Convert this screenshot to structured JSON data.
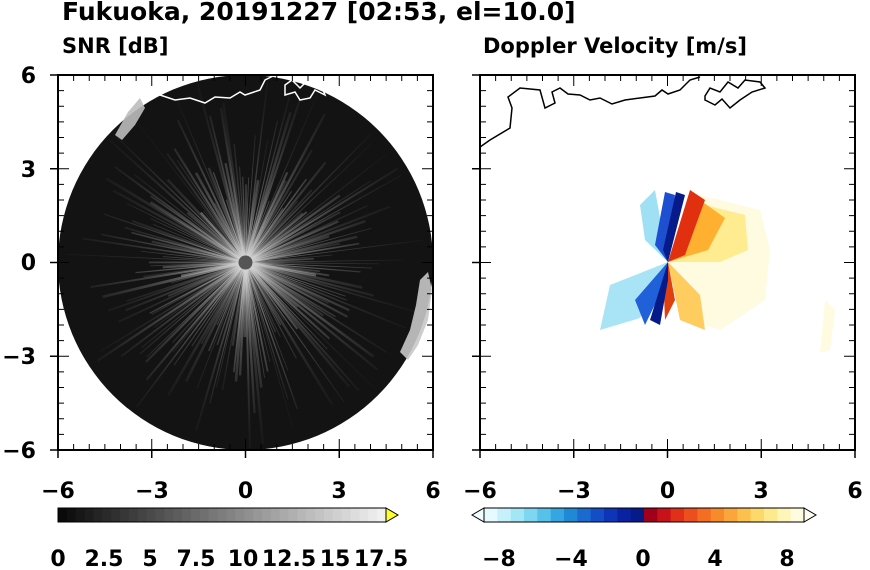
{
  "figure": {
    "title": "Fukuoka, 20191227 [02:53, el=10.0]"
  },
  "chart_data": [
    {
      "type": "heatmap",
      "title": "SNR [dB]",
      "xlim": [
        -6,
        6
      ],
      "ylim": [
        -6,
        6
      ],
      "xticks": [
        "−6",
        "−3",
        "0",
        "3",
        "6"
      ],
      "yticks": [
        "6",
        "3",
        "0",
        "−3",
        "−6"
      ],
      "colorbar": {
        "colormap": "grayscale",
        "range": [
          0,
          18.5
        ],
        "extend": "max",
        "ticklabels": [
          "0",
          "2.5",
          "5",
          "7.5",
          "10",
          "12.5",
          "15",
          "17.5"
        ]
      },
      "colors": {
        "background": "#111111",
        "rays": "#cfcfcf",
        "coastline": "#ffffff"
      }
    },
    {
      "type": "heatmap",
      "title": "Doppler Velocity [m/s]",
      "xlim": [
        -6,
        6
      ],
      "ylim": [
        -6,
        6
      ],
      "xticks": [
        "−6",
        "−3",
        "0",
        "3",
        "6"
      ],
      "colorbar": {
        "colormap": "blue-red diverging",
        "range": [
          -10,
          10
        ],
        "extend": "both",
        "ticklabels": [
          "−8",
          "−4",
          "0",
          "4",
          "8"
        ]
      },
      "colors": {
        "approaching": "#1060e0",
        "receding": "#e03010",
        "coastline": "#000000"
      }
    }
  ]
}
